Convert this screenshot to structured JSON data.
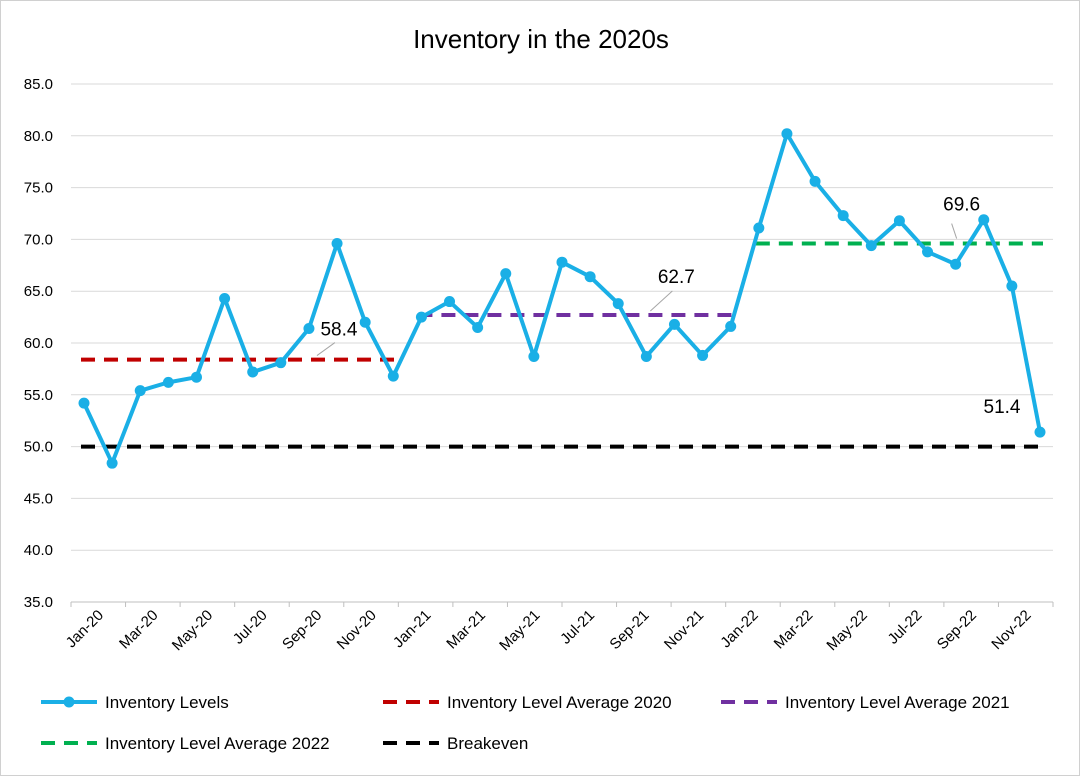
{
  "chart_data": {
    "type": "line",
    "title": "Inventory in the 2020s",
    "xlabel": "",
    "ylabel": "",
    "ylim": [
      35,
      85
    ],
    "y_ticks": [
      "85.0",
      "80.0",
      "75.0",
      "70.0",
      "65.0",
      "60.0",
      "55.0",
      "50.0",
      "45.0",
      "40.0",
      "35.0"
    ],
    "grid": true,
    "legend_position": "bottom",
    "x": [
      "Jan-20",
      "Feb-20",
      "Mar-20",
      "Apr-20",
      "May-20",
      "Jun-20",
      "Jul-20",
      "Aug-20",
      "Sep-20",
      "Oct-20",
      "Nov-20",
      "Dec-20",
      "Jan-21",
      "Feb-21",
      "Mar-21",
      "Apr-21",
      "May-21",
      "Jun-21",
      "Jul-21",
      "Aug-21",
      "Sep-21",
      "Oct-21",
      "Nov-21",
      "Dec-21",
      "Jan-22",
      "Feb-22",
      "Mar-22",
      "Apr-22",
      "May-22",
      "Jun-22",
      "Jul-22",
      "Aug-22",
      "Sep-22",
      "Oct-22",
      "Nov-22"
    ],
    "x_tick_labels": [
      "Jan-20",
      "Mar-20",
      "May-20",
      "Jul-20",
      "Sep-20",
      "Nov-20",
      "Jan-21",
      "Mar-21",
      "May-21",
      "Jul-21",
      "Sep-21",
      "Nov-21",
      "Jan-22",
      "Mar-22",
      "May-22",
      "Jul-22",
      "Sep-22",
      "Nov-22"
    ],
    "series": [
      {
        "name": "Inventory Levels",
        "color": "#1AAFE6",
        "style": "solid-markers",
        "values": [
          54.2,
          48.4,
          55.4,
          56.2,
          56.7,
          64.3,
          57.2,
          58.1,
          61.4,
          69.6,
          62.0,
          56.8,
          62.5,
          64.0,
          61.5,
          66.7,
          58.7,
          67.8,
          66.4,
          63.8,
          58.7,
          61.8,
          58.8,
          61.6,
          71.1,
          80.2,
          75.6,
          72.3,
          69.4,
          71.8,
          68.8,
          67.6,
          71.9,
          65.5,
          51.4
        ]
      },
      {
        "name": "Inventory Level Average 2020",
        "color": "#C00000",
        "style": "dashed",
        "value": 58.4,
        "range": [
          "Jan-20",
          "Dec-20"
        ]
      },
      {
        "name": "Inventory Level Average 2021",
        "color": "#7030A0",
        "style": "dashed",
        "value": 62.7,
        "range": [
          "Jan-21",
          "Dec-21"
        ]
      },
      {
        "name": "Inventory Level Average 2022",
        "color": "#00B050",
        "style": "dashed",
        "value": 69.6,
        "range": [
          "Jan-22",
          "Nov-22"
        ]
      },
      {
        "name": "Breakeven",
        "color": "#000000",
        "style": "dashed",
        "value": 50.0,
        "range": [
          "Jan-20",
          "Nov-22"
        ]
      }
    ],
    "annotations": [
      {
        "text": "58.4",
        "series": "Inventory Level Average 2020",
        "at": "Sep-20",
        "leader": true
      },
      {
        "text": "62.7",
        "series": "Inventory Level Average 2021",
        "at": "Sep-21",
        "leader": true
      },
      {
        "text": "69.6",
        "series": "Inventory Level Average 2022",
        "at": "Aug-22",
        "leader": true
      },
      {
        "text": "51.4",
        "series": "Inventory Levels",
        "at": "Nov-22",
        "leader": false
      }
    ]
  }
}
